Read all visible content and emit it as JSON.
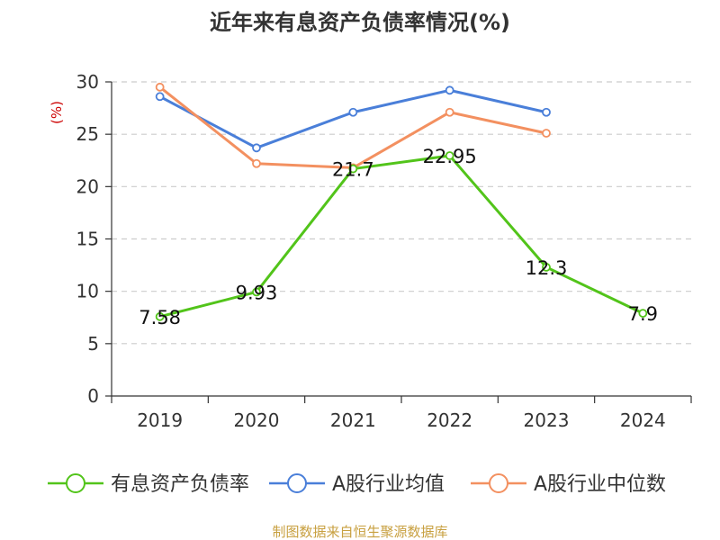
{
  "chart_data": {
    "type": "line",
    "title": "近年来有息资产负债率情况(%)",
    "ylabel": "(%)",
    "xlabel": "",
    "categories": [
      "2019",
      "2020",
      "2021",
      "2022",
      "2023",
      "2024"
    ],
    "ylim": [
      0,
      30
    ],
    "yticks": [
      0,
      5,
      10,
      15,
      20,
      25,
      30
    ],
    "grid": true,
    "legend_position": "bottom",
    "series": [
      {
        "name": "有息资产负债率",
        "color": "#52c41a",
        "values": [
          7.58,
          9.93,
          21.7,
          22.95,
          12.3,
          7.9
        ],
        "labels": [
          "7.58",
          "9.93",
          "21.7",
          "22.95",
          "12.3",
          "7.9"
        ]
      },
      {
        "name": "A股行业均值",
        "color": "#4a7fd9",
        "values": [
          28.6,
          23.7,
          27.1,
          29.2,
          27.1,
          null
        ],
        "labels": []
      },
      {
        "name": "A股行业中位数",
        "color": "#f39060",
        "values": [
          29.5,
          22.2,
          21.8,
          27.1,
          25.1,
          null
        ],
        "labels": []
      }
    ],
    "source": "制图数据来自恒生聚源数据库",
    "title_color": "#333333",
    "ylabel_color": "#cc0000",
    "source_color": "#c8a040"
  }
}
